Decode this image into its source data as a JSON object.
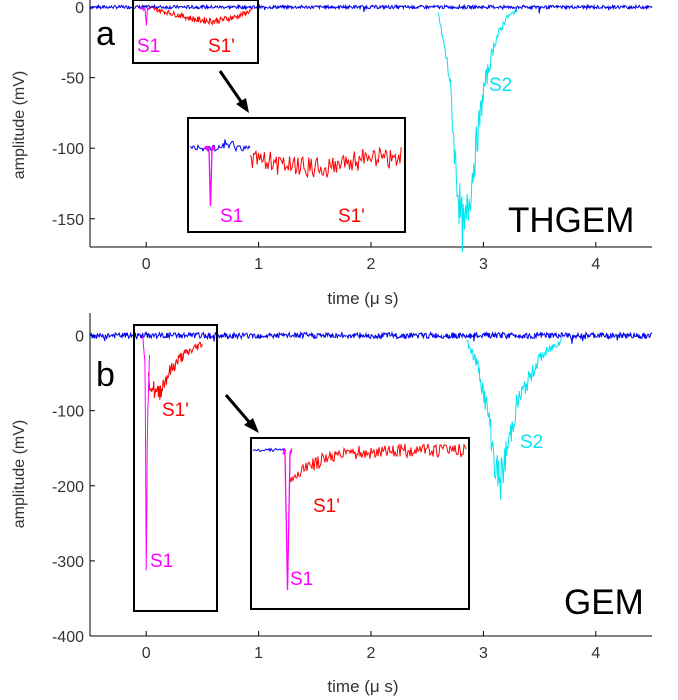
{
  "chart_data": [
    {
      "type": "line",
      "panel_label": "a",
      "detector_label": "THGEM",
      "xlabel": "time (μ s)",
      "ylabel": "amplitude (mV)",
      "xlim": [
        -0.5,
        4.5
      ],
      "ylim": [
        -170,
        5
      ],
      "x_ticks": [
        0,
        1,
        2,
        3,
        4
      ],
      "y_ticks": [
        0,
        -50,
        -100,
        -150
      ],
      "x_tick_labels": [
        "0",
        "1",
        "2",
        "3",
        "4"
      ],
      "y_tick_labels": [
        "0",
        "-50",
        "-100",
        "-150"
      ],
      "grid": false,
      "series": [
        {
          "label": "S1",
          "color": "#ff00ff",
          "x": [
            -0.05,
            -0.01,
            0.0,
            0.01,
            0.03
          ],
          "y": [
            0,
            -2,
            -14,
            -2,
            0
          ]
        },
        {
          "label": "S1'",
          "color": "#ff0000",
          "x": [
            0.05,
            0.25,
            0.45,
            0.6,
            0.8,
            0.95
          ],
          "y": [
            -1,
            -5,
            -9,
            -10,
            -7,
            -2
          ]
        },
        {
          "label": "S2",
          "color": "#00e5ee",
          "x": [
            2.6,
            2.7,
            2.75,
            2.8,
            2.83,
            2.9,
            3.0,
            3.1,
            3.2,
            3.3
          ],
          "y": [
            -5,
            -50,
            -110,
            -150,
            -162,
            -120,
            -60,
            -25,
            -8,
            -2
          ]
        },
        {
          "color": "#0000ee",
          "x": [
            -0.5,
            0.0,
            1.0,
            2.6,
            3.3,
            4.5
          ],
          "y": [
            0,
            0,
            0,
            0,
            0,
            0
          ]
        }
      ],
      "annotations": [
        "S1",
        "S1'",
        "S2"
      ],
      "inset": {
        "labels": [
          "S1",
          "S1'"
        ]
      }
    },
    {
      "type": "line",
      "panel_label": "b",
      "detector_label": "GEM",
      "xlabel": "time (μ s)",
      "ylabel": "amplitude (mV)",
      "xlim": [
        -0.5,
        4.5
      ],
      "ylim": [
        -400,
        30
      ],
      "x_ticks": [
        0,
        1,
        2,
        3,
        4
      ],
      "y_ticks": [
        0,
        -100,
        -200,
        -300,
        -400
      ],
      "x_tick_labels": [
        "0",
        "1",
        "2",
        "3",
        "4"
      ],
      "y_tick_labels": [
        "0",
        "-100",
        "-200",
        "-300",
        "-400"
      ],
      "grid": false,
      "series": [
        {
          "label": "S1",
          "color": "#ff00ff",
          "x": [
            -0.03,
            -0.01,
            0.0,
            0.01,
            0.03
          ],
          "y": [
            0,
            -40,
            -310,
            -120,
            -30
          ]
        },
        {
          "label": "S1'",
          "color": "#ff0000",
          "x": [
            0.02,
            0.1,
            0.2,
            0.3,
            0.4,
            0.5
          ],
          "y": [
            -60,
            -80,
            -50,
            -30,
            -20,
            -10
          ]
        },
        {
          "label": "S2",
          "color": "#00e5ee",
          "x": [
            2.85,
            2.95,
            3.05,
            3.1,
            3.15,
            3.2,
            3.3,
            3.5,
            3.7
          ],
          "y": [
            -5,
            -40,
            -110,
            -170,
            -195,
            -160,
            -90,
            -30,
            -5
          ]
        },
        {
          "color": "#0000ee",
          "x": [
            -0.5,
            0.0,
            1.0,
            2.85,
            3.7,
            4.5
          ],
          "y": [
            0,
            0,
            0,
            0,
            0,
            0
          ]
        }
      ],
      "annotations": [
        "S1'",
        "S1",
        "S2"
      ],
      "inset": {
        "labels": [
          "S1'",
          "S1"
        ]
      }
    }
  ]
}
